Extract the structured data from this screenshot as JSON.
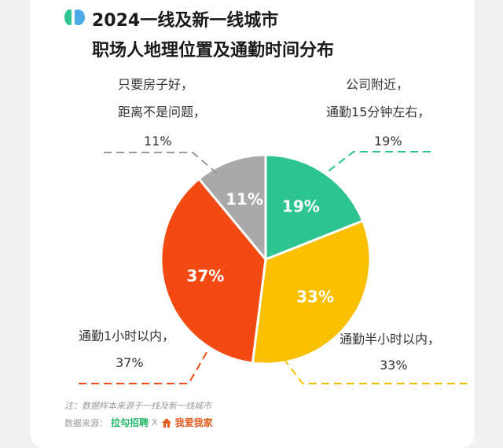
{
  "header": {
    "title_line1": "2024一线及新一线城市",
    "title_line2": "职场人地理位置及通勤时间分布"
  },
  "callouts": [
    {
      "line1": "只要房子好，",
      "line2": "距离不是问题，",
      "value": "11%"
    },
    {
      "line1": "公司附近，",
      "line2": "通勤15分钟左右，",
      "value": "19%"
    },
    {
      "line1": "通勤1小时以内，",
      "value": "37%"
    },
    {
      "line1": "通勤半小时以内，",
      "value": "33%"
    }
  ],
  "chart_data": {
    "type": "pie",
    "slices": [
      {
        "label": "公司附近，通勤15分钟左右",
        "value": 19,
        "display": "19%",
        "color": "#2ec490"
      },
      {
        "label": "通勤半小时以内",
        "value": 33,
        "display": "33%",
        "color": "#f8c000"
      },
      {
        "label": "通勤1小时以内",
        "value": 37,
        "display": "37%",
        "color": "#f24a12"
      },
      {
        "label": "只要房子好，距离不是问题",
        "value": 11,
        "display": "11%",
        "color": "#a9a9a9"
      }
    ],
    "start_angle": "12 o'clock, clockwise"
  },
  "footer": {
    "note": "注：数据样本来源于一线及新一线城市",
    "source_label": "数据来源：",
    "brand1": "拉勾招聘",
    "separator": "X",
    "brand2": "我爱我家"
  }
}
